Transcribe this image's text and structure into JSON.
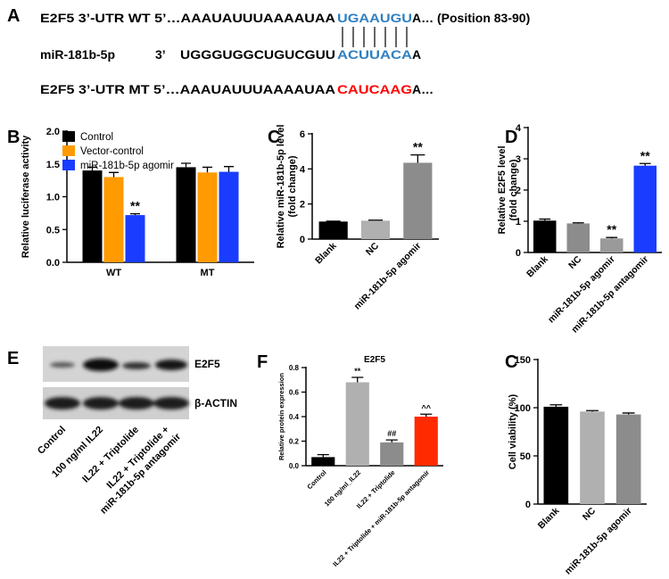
{
  "sequences": {
    "panel": "A",
    "wt": {
      "prefix": "E2F5 3’-UTR WT 5’…AAAUAUUUAAAAUAA",
      "site": "UGAAUGU",
      "suffix": "A… (Position 83-90)"
    },
    "mirna": {
      "name": "miR-181b-5p",
      "end": "3’",
      "prefix": "UGGGUGGCUGUCGUU",
      "site": "ACUUACA",
      "suffix": "A"
    },
    "mt": {
      "prefix": "E2F5 3’-UTR MT 5’…AAAUAUUUAAAAUAA",
      "site": "CAUCAAG",
      "suffix": "A…"
    }
  },
  "blot": {
    "panel": "E",
    "bands": [
      "E2F5",
      "β-ACTIN"
    ],
    "lanes": [
      "Control",
      "100 ng/ml IL22",
      "IL22 + Triptolide",
      [
        "IL22 + Triptolide +",
        "miR-181b-5p antagomir"
      ]
    ]
  },
  "chart_data": [
    {
      "type": "bar",
      "panel": "B",
      "ylabel": "Relative luciferase activity",
      "categories": [
        "WT",
        "MT"
      ],
      "series": [
        {
          "name": "Control",
          "color": "#000000",
          "values": [
            1.4,
            1.45
          ],
          "errors": [
            0.05,
            0.06
          ]
        },
        {
          "name": "Vector-control",
          "color": "#ff9a00",
          "values": [
            1.3,
            1.37
          ],
          "errors": [
            0.07,
            0.08
          ]
        },
        {
          "name": "miR-181b-5p agomir",
          "color": "#1a3cff",
          "values": [
            0.72,
            1.38
          ],
          "errors": [
            0.02,
            0.08
          ]
        }
      ],
      "annotations": [
        {
          "series": 2,
          "index": 0,
          "text": "**"
        }
      ],
      "ylim": [
        0,
        2
      ],
      "yticks": [
        {
          "value": 0,
          "label": "0.0"
        },
        0.5,
        {
          "value": 1,
          "label": "1.0"
        },
        1.5,
        {
          "value": 2,
          "label": "2.0"
        }
      ],
      "legend": "upper left"
    },
    {
      "type": "bar",
      "panel": "C",
      "ylabel": [
        "Relative miR-181b-5p level",
        "(fold change)"
      ],
      "categories": [
        "Blank",
        "NC",
        "miR-181b-5p agomir"
      ],
      "values": [
        1.0,
        1.05,
        4.35
      ],
      "errors": [
        0.02,
        0.03,
        0.45
      ],
      "colors": [
        "#000000",
        "#b0b0b0",
        "#8c8c8c"
      ],
      "annotations": [
        {
          "index": 2,
          "text": "**"
        }
      ],
      "ylim": [
        0,
        6
      ],
      "yticks": [
        0,
        2,
        4,
        6
      ]
    },
    {
      "type": "bar",
      "panel": "D",
      "ylabel": [
        "Relative E2F5 level",
        "(fold change)"
      ],
      "categories": [
        "Blank",
        "NC",
        "miR-181b-5p agomir",
        "miR-181b-5p antagomir"
      ],
      "values": [
        1.02,
        0.93,
        0.45,
        2.78
      ],
      "errors": [
        0.05,
        0.02,
        0.03,
        0.07
      ],
      "colors": [
        "#000000",
        "#8c8c8c",
        "#9a9a9a",
        "#1a3cff"
      ],
      "annotations": [
        {
          "index": 2,
          "text": "**"
        },
        {
          "index": 3,
          "text": "**"
        }
      ],
      "ylim": [
        0,
        4
      ],
      "yticks": [
        0,
        1,
        2,
        3,
        4
      ]
    },
    {
      "type": "bar",
      "panel": "F",
      "title": "E2F5",
      "ylabel": "Relative protein expression",
      "categories": [
        "Control",
        "100 ng/ml_IL22",
        "IL22 + Triptolide",
        "IL22 + Triptolide + miR-181b-5p antagomir"
      ],
      "values": [
        0.07,
        0.68,
        0.19,
        0.4
      ],
      "errors": [
        0.02,
        0.04,
        0.02,
        0.02
      ],
      "colors": [
        "#000000",
        "#b0b0b0",
        "#8c8c8c",
        "#ff2a00"
      ],
      "annotations": [
        {
          "index": 1,
          "text": "**"
        },
        {
          "index": 2,
          "text": "##"
        },
        {
          "index": 3,
          "text": "^^"
        }
      ],
      "ylim": [
        0,
        0.8
      ],
      "yticks": [
        {
          "value": 0,
          "label": "0.0"
        },
        0.2,
        0.4,
        0.6,
        0.8
      ]
    },
    {
      "type": "bar",
      "panel": "C",
      "ylabel": "Cell viability (%)",
      "categories": [
        "Blank",
        "NC",
        "miR-181b-5p agomir"
      ],
      "values": [
        101,
        96,
        93
      ],
      "errors": [
        2,
        1,
        1.5
      ],
      "colors": [
        "#000000",
        "#b0b0b0",
        "#8c8c8c"
      ],
      "ylim": [
        0,
        150
      ],
      "yticks": [
        0,
        50,
        100,
        150
      ]
    }
  ]
}
